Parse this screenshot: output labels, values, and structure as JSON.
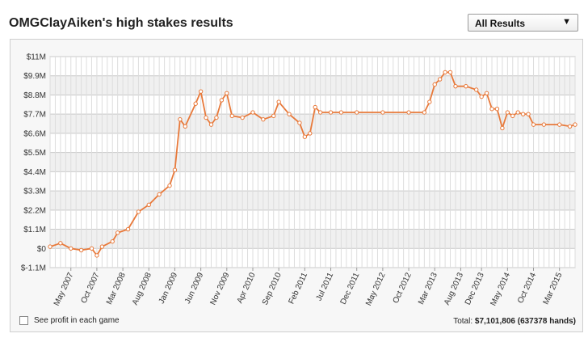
{
  "header": {
    "title": "OMGClayAiken's high stakes results",
    "filter_selected": "All Results",
    "filter_arrow_icon": "triangle-down-icon"
  },
  "footer": {
    "checkbox_label": "See profit in each game",
    "total_label": "Total:",
    "total_value": "$7,101,806 (637378 hands)"
  },
  "chart_data": {
    "type": "line",
    "title": "",
    "xlabel": "",
    "ylabel": "",
    "ylim": [
      -1.1,
      11
    ],
    "y_unit": "$M",
    "y_ticks": [
      -1.1,
      0,
      1.1,
      2.2,
      3.3,
      4.4,
      5.5,
      6.6,
      7.7,
      8.8,
      9.9,
      11
    ],
    "y_tick_labels": [
      "$-1.1M",
      "$0",
      "$1.1M",
      "$2.2M",
      "$3.3M",
      "$4.4M",
      "$5.5M",
      "$6.6M",
      "$7.7M",
      "$8.8M",
      "$9.9M",
      "$11M"
    ],
    "x_range": [
      "2007-01",
      "2015-06"
    ],
    "x_ticks": [
      "2007-05",
      "2007-10",
      "2008-03",
      "2008-08",
      "2009-01",
      "2009-06",
      "2009-11",
      "2010-04",
      "2010-09",
      "2011-02",
      "2011-07",
      "2011-12",
      "2012-05",
      "2012-10",
      "2013-03",
      "2013-08",
      "2013-12",
      "2014-05",
      "2014-10",
      "2015-03"
    ],
    "x_tick_labels": [
      "May 2007",
      "Oct 2007",
      "Mar 2008",
      "Aug 2008",
      "Jan 2009",
      "Jun 2009",
      "Nov 2009",
      "Apr 2010",
      "Sep 2010",
      "Feb 2011",
      "Jul 2011",
      "Dec 2011",
      "May 2012",
      "Oct 2012",
      "Mar 2013",
      "Aug 2013",
      "Dec 2013",
      "May 2014",
      "Oct 2014",
      "Mar 2015"
    ],
    "grid": true,
    "line_color": "#e8793a",
    "series": [
      {
        "name": "",
        "x": [
          "2007-01",
          "2007-03",
          "2007-05",
          "2007-07",
          "2007-09",
          "2007-10",
          "2007-11",
          "2008-01",
          "2008-02",
          "2008-04",
          "2008-06",
          "2008-08",
          "2008-10",
          "2008-12",
          "2009-01",
          "2009-02",
          "2009-03",
          "2009-05",
          "2009-06",
          "2009-07",
          "2009-08",
          "2009-09",
          "2009-10",
          "2009-11",
          "2009-12",
          "2010-02",
          "2010-04",
          "2010-06",
          "2010-08",
          "2010-09",
          "2010-11",
          "2011-01",
          "2011-02",
          "2011-03",
          "2011-04",
          "2011-05",
          "2011-07",
          "2011-09",
          "2011-12",
          "2012-05",
          "2012-10",
          "2013-01",
          "2013-02",
          "2013-03",
          "2013-04",
          "2013-05",
          "2013-06",
          "2013-07",
          "2013-09",
          "2013-11",
          "2013-12",
          "2014-01",
          "2014-02",
          "2014-03",
          "2014-04",
          "2014-05",
          "2014-06",
          "2014-07",
          "2014-08",
          "2014-09",
          "2014-10",
          "2014-12",
          "2015-03",
          "2015-05",
          "2015-06"
        ],
        "values": [
          0.1,
          0.3,
          0.0,
          -0.1,
          0.0,
          -0.4,
          0.1,
          0.4,
          0.9,
          1.1,
          2.1,
          2.5,
          3.1,
          3.6,
          4.5,
          7.4,
          7.0,
          8.3,
          9.0,
          7.5,
          7.1,
          7.5,
          8.5,
          8.9,
          7.6,
          7.5,
          7.8,
          7.4,
          7.6,
          8.4,
          7.7,
          7.2,
          6.4,
          6.6,
          8.1,
          7.8,
          7.8,
          7.8,
          7.8,
          7.8,
          7.8,
          7.8,
          8.4,
          9.4,
          9.7,
          10.1,
          10.1,
          9.3,
          9.3,
          9.1,
          8.7,
          8.9,
          8.0,
          8.0,
          6.9,
          7.8,
          7.6,
          7.8,
          7.7,
          7.7,
          7.1,
          7.1,
          7.1,
          7.0,
          7.1
        ]
      }
    ]
  }
}
